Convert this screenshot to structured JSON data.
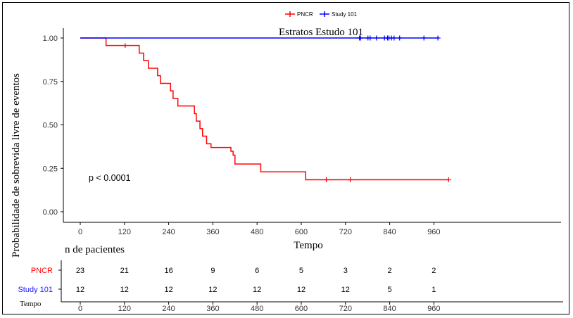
{
  "chart_data": {
    "type": "line",
    "subtype": "kaplan-meier",
    "title": "Estratos  Estudo 101",
    "xlabel": "Tempo",
    "ylabel": "Probabilidade de sobrevida livre de eventos",
    "xlim": [
      0,
      1020
    ],
    "ylim": [
      0,
      1.05
    ],
    "x_ticks": [
      0,
      120,
      240,
      360,
      480,
      600,
      720,
      840,
      960
    ],
    "y_ticks": [
      "0.00",
      "0.25",
      "0.50",
      "0.75",
      "1.00"
    ],
    "y_tick_values": [
      0,
      0.25,
      0.5,
      0.75,
      1.0
    ],
    "legend": {
      "position": "top",
      "entries": [
        "PNCR",
        "Study 101"
      ]
    },
    "annotation": "p < 0.0001",
    "grid": false,
    "series": [
      {
        "name": "PNCR",
        "color": "#ff0000",
        "steps": [
          [
            0,
            1.0
          ],
          [
            70,
            0.957
          ],
          [
            160,
            0.913
          ],
          [
            172,
            0.87
          ],
          [
            185,
            0.826
          ],
          [
            210,
            0.783
          ],
          [
            218,
            0.739
          ],
          [
            245,
            0.696
          ],
          [
            252,
            0.652
          ],
          [
            265,
            0.609
          ],
          [
            310,
            0.565
          ],
          [
            315,
            0.522
          ],
          [
            325,
            0.478
          ],
          [
            332,
            0.435
          ],
          [
            343,
            0.391
          ],
          [
            355,
            0.37
          ],
          [
            409,
            0.348
          ],
          [
            415,
            0.326
          ],
          [
            420,
            0.275
          ],
          [
            490,
            0.23
          ],
          [
            612,
            0.184
          ],
          [
            1000,
            0.184
          ]
        ],
        "censored": [
          [
            122,
            0.957
          ],
          [
            668,
            0.184
          ],
          [
            733,
            0.184
          ],
          [
            1000,
            0.184
          ]
        ]
      },
      {
        "name": "Study 101",
        "color": "#0000ff",
        "steps": [
          [
            0,
            1.0
          ],
          [
            971,
            1.0
          ]
        ],
        "censored": [
          [
            758,
            1.0
          ],
          [
            761,
            1.0
          ],
          [
            781,
            1.0
          ],
          [
            787,
            1.0
          ],
          [
            804,
            1.0
          ],
          [
            826,
            1.0
          ],
          [
            834,
            1.0
          ],
          [
            838,
            1.0
          ],
          [
            845,
            1.0
          ],
          [
            852,
            1.0
          ],
          [
            867,
            1.0
          ],
          [
            933,
            1.0
          ],
          [
            971,
            1.0
          ]
        ]
      }
    ]
  },
  "risk_table": {
    "title": "n de pacientes",
    "xlabel": "Tempo",
    "times": [
      "0",
      "120",
      "240",
      "360",
      "480",
      "600",
      "720",
      "840",
      "960"
    ],
    "rows": [
      {
        "label": "PNCR",
        "color": "#ff0000",
        "values": [
          "23",
          "21",
          "16",
          "9",
          "6",
          "5",
          "3",
          "2",
          "2"
        ]
      },
      {
        "label": "Study 101",
        "color": "#1a1aff",
        "values": [
          "12",
          "12",
          "12",
          "12",
          "12",
          "12",
          "12",
          "5",
          "1"
        ]
      }
    ]
  }
}
